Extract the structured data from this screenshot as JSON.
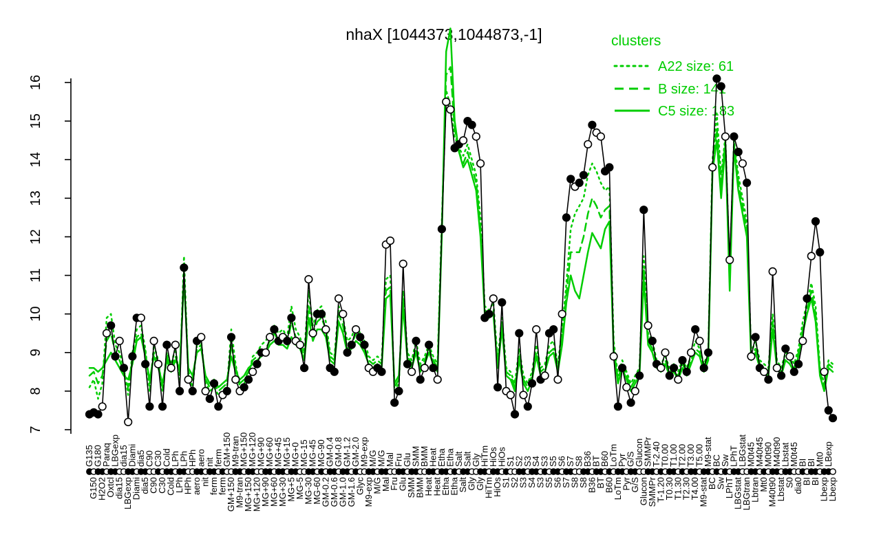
{
  "title": "nhaX [1044373,1044873,-1]",
  "legend": {
    "heading": "clusters",
    "entries": [
      {
        "label": "A22 size: 61",
        "style": "dotted"
      },
      {
        "label": "B size: 141",
        "style": "dashed"
      },
      {
        "label": "C5 size: 183",
        "style": "solid"
      }
    ]
  },
  "colors": {
    "cluster_green": "#00CD00",
    "gene_black": "#000000",
    "background": "#FFFFFF"
  },
  "axes": {
    "y_ticks": [
      7,
      8,
      9,
      10,
      11,
      12,
      13,
      14,
      15,
      16
    ],
    "y_range": [
      7,
      16
    ]
  },
  "chart_data": {
    "type": "line",
    "title": "nhaX [1044373,1044873,-1]",
    "ylabel": "",
    "xlabel": "",
    "ylim": [
      7,
      16
    ],
    "yticks": [
      7,
      8,
      9,
      10,
      11,
      12,
      13,
      14,
      15,
      16
    ],
    "grid": false,
    "legend_position": "top-right",
    "categories": [
      "G135",
      "G150",
      "G180",
      "H2O2",
      "Paraq",
      "Oxtcl",
      "LBGexp",
      "dia15",
      "dia15",
      "LBGexp",
      "Diami",
      "Diami",
      "dia5",
      "dia5",
      "C90",
      "C90",
      "C30",
      "C30",
      "Cold",
      "Cold",
      "LPh",
      "LPh",
      "LPh",
      "HPh",
      "HPh",
      "aero",
      "aero",
      "nit",
      "nit",
      "ferm",
      "ferm",
      "ferm",
      "GM+150",
      "GM+150",
      "M9-tran",
      "M9-tran",
      "MG+150",
      "MG+150",
      "MG+120",
      "MG+120",
      "MG+90",
      "MG+90",
      "MG+60",
      "MG+60",
      "MG+45",
      "MG+30",
      "MG+15",
      "MG+5",
      "MG+0",
      "MG-5",
      "MG-15",
      "MG-30",
      "MG-45",
      "MG-60",
      "MG-90",
      "GM-0.2",
      "GM-0.4",
      "GM-0.6",
      "GM-0.8",
      "GM-1.0",
      "GM-1.2",
      "GM-1.6",
      "GM-2.0",
      "Glyc",
      "M9-exp",
      "M9-exp",
      "M/G",
      "M/G",
      "M/G",
      "Mal",
      "Mal",
      "Fru",
      "Fru",
      "Glu",
      "Glu",
      "SMM",
      "SMM",
      "BMM",
      "BMM",
      "Heat",
      "Heat",
      "Heat",
      "Etha",
      "Etha",
      "Etha",
      "Etha",
      "Salt",
      "Salt",
      "Salt",
      "Gly",
      "Gly",
      "Gly",
      "HiTm",
      "HiTm",
      "HiOs",
      "HiOs",
      "HiOs",
      "S1",
      "S1",
      "S2",
      "S2",
      "S3",
      "S3",
      "S4",
      "S4",
      "S3",
      "S3",
      "S5",
      "S5",
      "S6",
      "S6",
      "S7",
      "S7",
      "S8",
      "S8",
      "S8",
      "B36",
      "B36",
      "BT",
      "BT",
      "B60",
      "B60",
      "LoTm",
      "LoTm",
      "Pyr",
      "Pyr",
      "G/S",
      "G/S",
      "Glucon",
      "Glucon",
      "SMMPr",
      "SMMPr",
      "T-2.40",
      "T-1.20",
      "T0.00",
      "T0.30",
      "T1.00",
      "T1.30",
      "T2.00",
      "T2.30",
      "T3.00",
      "T4.00",
      "T5.00",
      "M9-stat",
      "M9-stat",
      "BC",
      "BC",
      "Sw",
      "Sw",
      "LPhT",
      "LPhT",
      "LBGstat",
      "LBGstat",
      "LBGtran",
      "M0t45",
      "Lbtran",
      "M40t45",
      "Mt0",
      "M0t90",
      "M40t90",
      "M40t90",
      "Lbstat",
      "Lbstat",
      "S0",
      "M0t45",
      "dia0",
      "BI",
      "BI",
      "BI",
      "BI",
      "Mt0",
      "Lbexp",
      "LBexp",
      "Lbexp"
    ],
    "series": [
      {
        "name": "nhaX expression",
        "color": "#000000",
        "marker": "circle",
        "line": "solid",
        "values": [
          7.4,
          7.45,
          7.4,
          7.6,
          9.5,
          9.7,
          8.9,
          9.3,
          8.6,
          7.2,
          8.9,
          9.9,
          9.9,
          8.7,
          7.6,
          9.3,
          8.7,
          7.6,
          9.2,
          8.6,
          9.2,
          8.0,
          11.2,
          8.3,
          8.0,
          9.3,
          9.4,
          8.0,
          7.8,
          8.2,
          7.6,
          7.9,
          8.0,
          9.4,
          8.3,
          8.0,
          8.1,
          8.3,
          8.5,
          8.7,
          9.0,
          9.0,
          9.4,
          9.6,
          9.3,
          9.4,
          9.3,
          9.9,
          9.3,
          9.2,
          8.6,
          10.9,
          9.5,
          10.0,
          10.0,
          9.6,
          8.6,
          8.5,
          10.4,
          10.0,
          9.0,
          9.2,
          9.6,
          9.4,
          9.2,
          8.6,
          8.5,
          8.6,
          8.5,
          11.8,
          11.9,
          7.7,
          8.0,
          11.3,
          8.7,
          8.5,
          9.3,
          8.3,
          8.6,
          9.2,
          8.6,
          8.3,
          12.2,
          15.5,
          15.3,
          14.3,
          14.4,
          14.5,
          15.0,
          14.9,
          14.6,
          13.9,
          9.9,
          10.0,
          10.4,
          8.1,
          10.3,
          8.0,
          7.9,
          7.4,
          9.5,
          7.9,
          7.6,
          8.2,
          9.6,
          8.3,
          8.4,
          9.5,
          9.6,
          8.3,
          10.0,
          12.5,
          13.5,
          13.3,
          13.4,
          13.6,
          14.4,
          14.9,
          14.7,
          14.6,
          13.7,
          13.8,
          8.9,
          7.6,
          8.6,
          8.1,
          7.7,
          8.0,
          8.4,
          12.7,
          9.7,
          9.3,
          8.7,
          8.6,
          9.0,
          8.4,
          8.6,
          8.3,
          8.8,
          8.5,
          9.0,
          9.6,
          9.3,
          8.6,
          9.0,
          13.8,
          16.1,
          15.9,
          14.6,
          11.4,
          14.6,
          14.2,
          13.9,
          13.4,
          8.9,
          9.4,
          8.6,
          8.5,
          8.3,
          11.1,
          8.6,
          8.4,
          9.1,
          8.9,
          8.5,
          8.7,
          9.3,
          10.4,
          11.5,
          12.4,
          11.6,
          8.5,
          7.5,
          7.3
        ]
      },
      {
        "name": "A22 size: 61",
        "color": "#00CD00",
        "line": "dotted",
        "values": [
          8.1,
          8.3,
          7.8,
          8.2,
          9.9,
          10.0,
          9.2,
          9.0,
          8.6,
          7.9,
          9.0,
          9.6,
          9.7,
          9.1,
          8.0,
          9.2,
          8.8,
          8.0,
          9.0,
          8.7,
          9.1,
          8.3,
          11.5,
          8.4,
          8.1,
          9.2,
          9.3,
          8.2,
          8.0,
          8.1,
          7.9,
          8.0,
          8.1,
          9.6,
          8.7,
          8.1,
          8.2,
          8.4,
          8.9,
          9.0,
          9.2,
          9.3,
          9.5,
          9.7,
          9.5,
          9.6,
          9.4,
          10.2,
          9.6,
          9.4,
          9.0,
          10.6,
          9.7,
          10.1,
          10.2,
          9.8,
          9.0,
          8.9,
          10.2,
          9.9,
          9.3,
          9.4,
          9.7,
          9.5,
          9.3,
          8.9,
          8.8,
          8.9,
          8.8,
          10.9,
          11.0,
          8.0,
          8.2,
          10.6,
          9.0,
          8.8,
          9.3,
          8.7,
          8.9,
          9.2,
          8.9,
          8.7,
          12.4,
          15.8,
          15.4,
          14.6,
          14.3,
          14.1,
          14.4,
          14.0,
          13.6,
          12.5,
          10.2,
          10.1,
          10.3,
          8.8,
          9.9,
          8.6,
          8.5,
          8.2,
          9.1,
          8.4,
          8.2,
          8.5,
          9.2,
          8.6,
          8.7,
          9.2,
          9.3,
          8.7,
          9.6,
          10.8,
          12.2,
          12.6,
          12.8,
          13.0,
          13.6,
          13.9,
          13.7,
          13.4,
          13.2,
          13.3,
          9.3,
          8.4,
          8.8,
          8.5,
          8.2,
          8.4,
          8.6,
          11.5,
          9.5,
          9.3,
          8.8,
          8.7,
          8.9,
          8.6,
          8.7,
          8.5,
          8.8,
          8.6,
          8.9,
          9.3,
          9.1,
          8.7,
          9.0,
          14.0,
          15.2,
          13.6,
          14.6,
          11.0,
          14.5,
          13.6,
          13.0,
          12.4,
          9.0,
          9.3,
          8.8,
          8.7,
          8.6,
          10.0,
          8.8,
          8.6,
          9.0,
          8.9,
          8.7,
          9.1,
          9.8,
          10.3,
          10.8,
          10.2,
          8.6,
          8.2,
          8.8,
          8.7
        ]
      },
      {
        "name": "B size: 141",
        "color": "#00CD00",
        "line": "dashed",
        "values": [
          8.4,
          8.5,
          8.2,
          8.4,
          9.3,
          9.5,
          9.0,
          8.8,
          8.5,
          8.1,
          8.8,
          9.4,
          9.5,
          9.0,
          8.2,
          9.0,
          8.7,
          8.1,
          8.9,
          8.6,
          8.9,
          8.5,
          11.1,
          8.5,
          8.3,
          9.1,
          9.2,
          8.3,
          8.1,
          8.2,
          8.0,
          8.1,
          8.2,
          9.2,
          8.6,
          8.2,
          8.3,
          8.5,
          8.8,
          8.9,
          9.0,
          9.1,
          9.3,
          9.5,
          9.3,
          9.4,
          9.2,
          9.8,
          9.4,
          9.2,
          8.9,
          10.2,
          9.5,
          9.8,
          9.9,
          9.6,
          8.9,
          8.8,
          10.0,
          9.7,
          9.1,
          9.2,
          9.5,
          9.3,
          9.1,
          8.8,
          8.7,
          8.8,
          8.7,
          10.6,
          10.7,
          8.1,
          8.3,
          10.4,
          8.9,
          8.7,
          9.1,
          8.6,
          8.8,
          9.1,
          8.8,
          8.6,
          12.2,
          16.2,
          16.4,
          14.8,
          14.2,
          13.9,
          14.2,
          13.8,
          13.4,
          12.2,
          10.1,
          10.0,
          10.1,
          8.7,
          9.7,
          8.5,
          8.4,
          8.1,
          8.9,
          8.3,
          8.1,
          8.4,
          9.0,
          8.5,
          8.6,
          9.0,
          9.1,
          8.6,
          9.4,
          10.5,
          11.6,
          11.6,
          11.6,
          12.0,
          12.6,
          13.0,
          12.8,
          12.5,
          12.7,
          12.8,
          9.1,
          8.3,
          8.7,
          8.4,
          8.1,
          8.3,
          8.5,
          11.2,
          9.3,
          9.1,
          8.7,
          8.6,
          8.8,
          8.5,
          8.6,
          8.4,
          8.7,
          8.5,
          8.8,
          9.1,
          9.0,
          8.6,
          8.9,
          13.8,
          14.8,
          13.3,
          14.5,
          10.8,
          14.4,
          13.4,
          12.8,
          12.2,
          8.9,
          9.1,
          8.7,
          8.6,
          8.5,
          9.8,
          8.7,
          8.5,
          8.9,
          8.8,
          8.6,
          9.0,
          9.6,
          10.1,
          10.6,
          10.0,
          8.5,
          8.1,
          8.7,
          8.6
        ]
      },
      {
        "name": "C5 size: 183",
        "color": "#00CD00",
        "line": "solid",
        "values": [
          8.6,
          8.6,
          8.5,
          8.6,
          8.8,
          9.0,
          8.8,
          8.6,
          8.4,
          8.3,
          8.7,
          9.3,
          9.4,
          8.9,
          8.3,
          8.9,
          8.6,
          8.2,
          8.8,
          8.5,
          8.8,
          8.6,
          10.9,
          8.6,
          8.4,
          9.0,
          9.1,
          8.4,
          8.2,
          8.3,
          8.1,
          8.2,
          8.3,
          8.9,
          8.5,
          8.3,
          8.4,
          8.6,
          8.7,
          8.8,
          8.9,
          9.0,
          9.2,
          9.3,
          9.2,
          9.2,
          9.1,
          9.4,
          9.2,
          9.1,
          8.8,
          9.9,
          9.3,
          9.6,
          9.6,
          9.4,
          8.8,
          8.7,
          9.8,
          9.5,
          9.0,
          9.1,
          9.3,
          9.2,
          9.0,
          8.7,
          8.6,
          8.7,
          8.6,
          10.4,
          10.5,
          8.2,
          8.4,
          10.2,
          8.8,
          8.6,
          9.0,
          8.5,
          8.7,
          9.0,
          8.7,
          8.5,
          12.0,
          16.8,
          17.4,
          15.0,
          14.2,
          13.8,
          14.0,
          13.6,
          13.2,
          12.0,
          10.0,
          9.9,
          10.0,
          8.6,
          9.6,
          8.4,
          8.3,
          8.0,
          8.8,
          8.2,
          8.0,
          8.3,
          8.9,
          8.4,
          8.5,
          8.9,
          9.0,
          8.5,
          9.2,
          10.3,
          11.0,
          10.6,
          10.4,
          11.0,
          11.6,
          12.1,
          11.9,
          11.7,
          12.2,
          12.4,
          9.0,
          8.2,
          8.6,
          8.3,
          8.0,
          8.2,
          8.4,
          10.9,
          9.2,
          9.0,
          8.6,
          8.5,
          8.7,
          8.4,
          8.5,
          8.3,
          8.6,
          8.4,
          8.7,
          9.0,
          8.9,
          8.5,
          8.8,
          13.7,
          14.5,
          13.0,
          14.4,
          10.6,
          14.3,
          13.2,
          12.6,
          12.0,
          8.8,
          9.0,
          8.6,
          8.5,
          8.4,
          9.6,
          8.6,
          8.4,
          8.8,
          8.7,
          8.5,
          8.9,
          9.5,
          10.0,
          10.4,
          9.8,
          8.4,
          8.0,
          8.6,
          8.5
        ]
      }
    ],
    "marker_filled": "111001101011011001100110110011101100110110011011001001101100110110011001101011011010011011001101100110110101100110110100110110101101100110110101101100110101101001101101011011001101011010",
    "strip_filled": "101101100110110010110110011011010011011001101101100110101101101001101100110110011011010110011011010011011010110110011011010110110011010110101101101010110011010110110010110110101101100101"
  }
}
